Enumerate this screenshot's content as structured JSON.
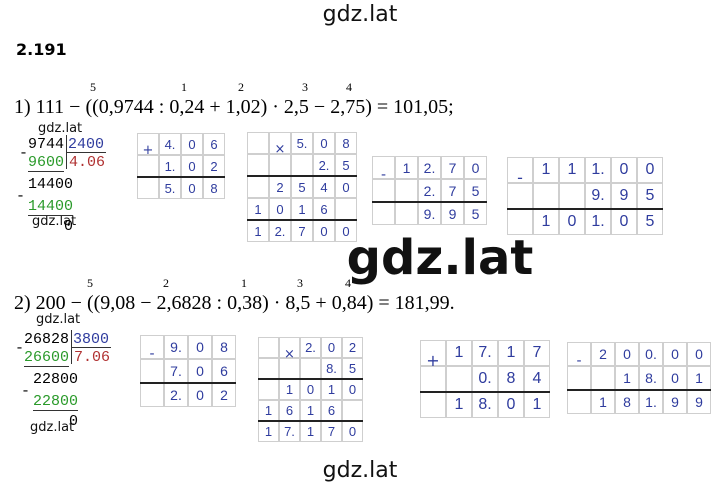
{
  "watermarks": [
    "gdz.lat",
    "gdz.lat",
    "gdz.lat",
    "gdz.lat",
    "gdz.lat",
    "gdz.lat",
    "gdz.lat"
  ],
  "problem_number": "2.191",
  "parts": [
    {
      "step_order": [
        "5",
        "1",
        "2",
        "3",
        "4"
      ],
      "expression": "1) 111 − ((0,9744 : 0,24 + 1,02) · 2,5 − 2,75) = 101,05;",
      "division": {
        "dividend": "9744",
        "divisor": "2400",
        "quotient": "4.06",
        "steps": [
          "9600",
          "14400",
          "14400",
          "0"
        ]
      },
      "columns": [
        {
          "sign": "+",
          "rows": [
            [
              "4.",
              "0",
              "6"
            ],
            [
              "1.",
              "0",
              "2"
            ],
            [
              "5.",
              "0",
              "8"
            ]
          ]
        },
        {
          "sign": "×",
          "rows": [
            [
              null,
              null,
              "5.",
              "0",
              "8"
            ],
            [
              null,
              null,
              null,
              "2.",
              "5"
            ],
            [
              null,
              "2",
              "5",
              "4",
              "0"
            ],
            [
              "1",
              "0",
              "1",
              "6",
              null
            ],
            [
              "1",
              "2.",
              "7",
              "0",
              "0"
            ]
          ]
        },
        {
          "sign": "-",
          "rows": [
            [
              "1",
              "2.",
              "7",
              "0"
            ],
            [
              null,
              "2.",
              "7",
              "5"
            ],
            [
              null,
              "9.",
              "9",
              "5"
            ]
          ]
        },
        {
          "sign": "-",
          "rows": [
            [
              "1",
              "1",
              "1.",
              "0",
              "0"
            ],
            [
              null,
              null,
              "9.",
              "9",
              "5"
            ],
            [
              "1",
              "0",
              "1.",
              "0",
              "5"
            ]
          ]
        }
      ]
    },
    {
      "step_order": [
        "5",
        "2",
        "1",
        "3",
        "4"
      ],
      "expression": "2) 200 − ((9,08 − 2,6828 : 0,38) · 8,5 + 0,84) = 181,99.",
      "division": {
        "dividend": "26828",
        "divisor": "3800",
        "quotient": "7.06",
        "steps": [
          "26600",
          "22800",
          "22800",
          "0"
        ]
      },
      "columns": [
        {
          "sign": "-",
          "rows": [
            [
              "9.",
              "0",
              "8"
            ],
            [
              "7.",
              "0",
              "6"
            ],
            [
              "2.",
              "0",
              "2"
            ]
          ]
        },
        {
          "sign": "×",
          "rows": [
            [
              null,
              null,
              "2.",
              "0",
              "2"
            ],
            [
              null,
              null,
              null,
              "8.",
              "5"
            ],
            [
              null,
              "1",
              "0",
              "1",
              "0"
            ],
            [
              "1",
              "6",
              "1",
              "6",
              null
            ],
            [
              "1",
              "7.",
              "1",
              "7",
              "0"
            ]
          ]
        },
        {
          "sign": "+",
          "rows": [
            [
              "1",
              "7.",
              "1",
              "7"
            ],
            [
              null,
              "0.",
              "8",
              "4"
            ],
            [
              "1",
              "8.",
              "0",
              "1"
            ]
          ]
        },
        {
          "sign": "-",
          "rows": [
            [
              "2",
              "0",
              "0.",
              "0",
              "0"
            ],
            [
              null,
              "1",
              "8.",
              "0",
              "1"
            ],
            [
              "1",
              "8",
              "1.",
              "9",
              "9"
            ]
          ]
        }
      ]
    }
  ]
}
